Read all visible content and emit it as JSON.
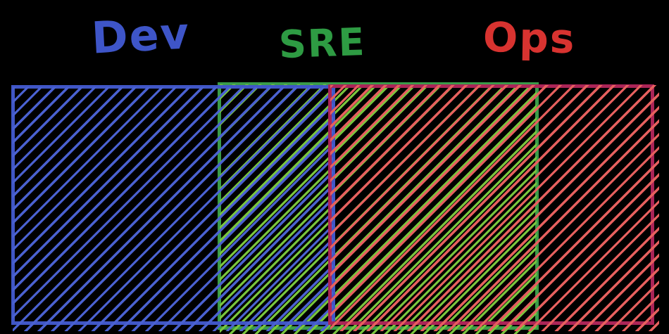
{
  "background_color": "#000000",
  "labels": {
    "dev": {
      "text": "Dev",
      "color": "#3e55c8"
    },
    "sre": {
      "text": "SRE",
      "color": "#2e9b43"
    },
    "ops": {
      "text": "Ops",
      "color": "#d83330"
    }
  },
  "sets": {
    "dev": {
      "name": "Dev",
      "border_color": "#4056c6",
      "hatch_color": "#4a61d0"
    },
    "sre": {
      "name": "SRE",
      "border_color": "#3a9b49",
      "hatch_color": "#79c53d"
    },
    "ops": {
      "name": "Ops",
      "border_color": "#ab2457",
      "hatch_color": "#e6605e"
    }
  },
  "overlaps": [
    {
      "between": [
        "Dev",
        "SRE"
      ]
    },
    {
      "between": [
        "SRE",
        "Ops"
      ]
    }
  ]
}
